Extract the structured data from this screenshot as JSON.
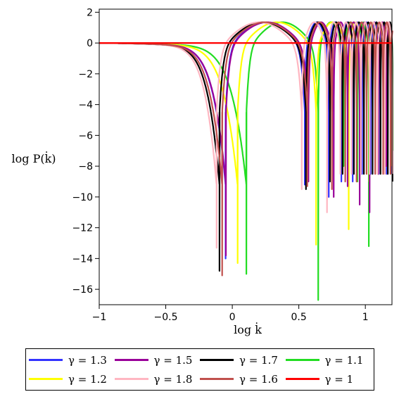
{
  "chart_data": {
    "type": "line",
    "xlabel": "log k̇",
    "ylabel": "log P(k̇)",
    "xlim": [
      -1,
      1.2
    ],
    "ylim": [
      -17,
      2.2
    ],
    "x_ticks": [
      "−1",
      "−0.5",
      "0",
      "0.5",
      "1"
    ],
    "x_tick_values": [
      -1,
      -0.5,
      0,
      0.5,
      1
    ],
    "y_ticks": [
      "2",
      "0",
      "−2",
      "−4",
      "−6",
      "−8",
      "−10",
      "−12",
      "−14",
      "−16"
    ],
    "y_tick_values": [
      2,
      0,
      -2,
      -4,
      -6,
      -8,
      -10,
      -12,
      -14,
      -16
    ],
    "legend_position": "bottom",
    "series": [
      {
        "name": "γ = 1.3",
        "color": "#3333ff",
        "dips": [
          [
            -0.05,
            -14.0
          ],
          [
            0.545,
            -9.2
          ],
          [
            0.725,
            -10.0
          ],
          [
            0.82,
            -9.0
          ],
          [
            0.905,
            -9.0
          ],
          [
            0.975,
            -8.5
          ],
          [
            1.04,
            -8.5
          ],
          [
            1.1,
            -8.5
          ],
          [
            1.16,
            -8.5
          ],
          [
            1.2,
            -8.5
          ]
        ]
      },
      {
        "name": "γ = 1.5",
        "color": "#990099",
        "dips": [
          [
            -0.05,
            -13.8
          ],
          [
            0.57,
            -9.0
          ],
          [
            0.76,
            -10.0
          ],
          [
            0.865,
            -9.3
          ],
          [
            0.955,
            -10.5
          ],
          [
            1.03,
            -11.0
          ],
          [
            1.095,
            -8.5
          ],
          [
            1.155,
            -8.0
          ],
          [
            1.2,
            -8.0
          ]
        ]
      },
      {
        "name": "γ = 1.7",
        "color": "#000000",
        "dips": [
          [
            -0.1,
            -14.8
          ],
          [
            0.55,
            -9.5
          ],
          [
            0.73,
            -9.0
          ],
          [
            0.825,
            -8.5
          ],
          [
            0.91,
            -8.5
          ],
          [
            0.985,
            -8.5
          ],
          [
            1.05,
            -8.5
          ],
          [
            1.11,
            -8.5
          ],
          [
            1.165,
            -8.5
          ],
          [
            1.2,
            -9.0
          ]
        ]
      },
      {
        "name": "γ = 1.1",
        "color": "#22dd22",
        "dips": [
          [
            0.1,
            -15.0
          ],
          [
            0.64,
            -16.7
          ],
          [
            0.83,
            -8.0
          ],
          [
            0.935,
            -9.0
          ],
          [
            1.02,
            -13.2
          ],
          [
            1.09,
            -8.5
          ],
          [
            1.15,
            -6.3
          ],
          [
            1.2,
            -7.0
          ]
        ]
      },
      {
        "name": "γ = 1.2",
        "color": "#ffff00",
        "dips": [
          [
            0.04,
            -14.3
          ],
          [
            0.63,
            -13.1
          ],
          [
            0.875,
            -12.1
          ],
          [
            0.96,
            -8.0
          ],
          [
            1.03,
            -9.0
          ],
          [
            1.095,
            -8.5
          ],
          [
            1.155,
            -8.0
          ],
          [
            1.2,
            -8.0
          ]
        ]
      },
      {
        "name": "γ = 1.8",
        "color": "#ffb6c1",
        "dips": [
          [
            -0.12,
            -13.3
          ],
          [
            0.52,
            -9.5
          ],
          [
            0.71,
            -11.0
          ],
          [
            0.81,
            -8.5
          ],
          [
            0.895,
            -8.5
          ],
          [
            0.965,
            -8.5
          ],
          [
            1.03,
            -8.5
          ],
          [
            1.09,
            -8.5
          ],
          [
            1.145,
            -8.5
          ],
          [
            1.2,
            -8.5
          ]
        ]
      },
      {
        "name": "γ = 1.6",
        "color": "#c0504d",
        "dips": [
          [
            -0.08,
            -15.1
          ],
          [
            0.56,
            -9.3
          ],
          [
            0.745,
            -9.5
          ],
          [
            0.845,
            -9.0
          ],
          [
            0.93,
            -9.0
          ],
          [
            1.005,
            -8.5
          ],
          [
            1.07,
            -8.5
          ],
          [
            1.13,
            -8.5
          ],
          [
            1.185,
            -8.5
          ]
        ]
      },
      {
        "name": "γ = 1",
        "color": "#ff0000",
        "constant": 0
      }
    ]
  }
}
